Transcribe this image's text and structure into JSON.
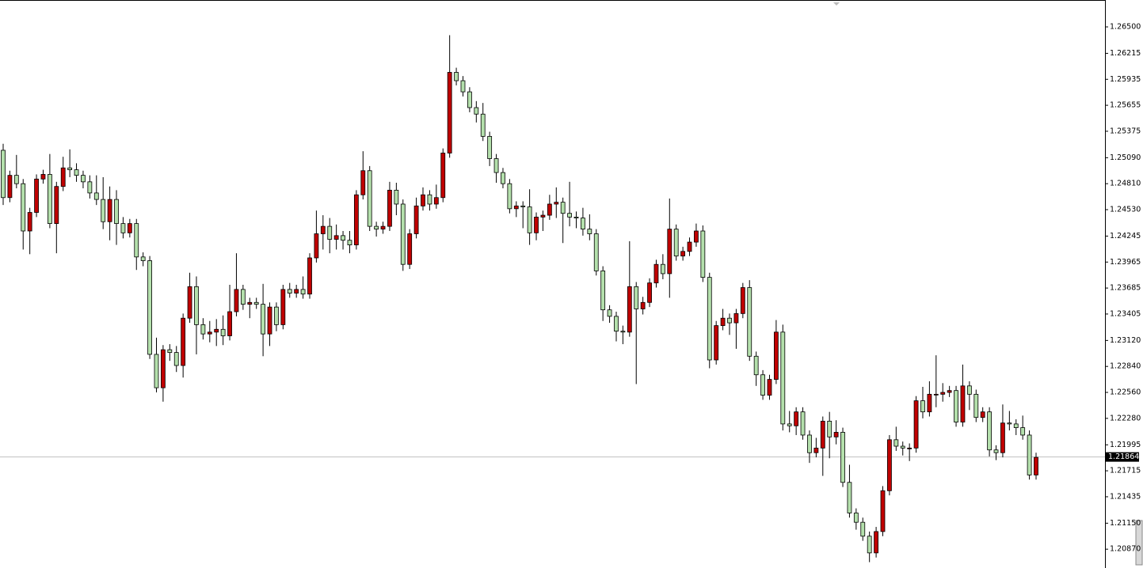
{
  "chart_data": {
    "type": "candlestick",
    "up_color": "#c00000",
    "down_color": "#b4e0ac",
    "outline_color": "#000000",
    "ylim": [
      1.20667,
      1.2679
    ],
    "yticks": [
      {
        "value": 1.265,
        "label": "1.26500"
      },
      1.26215,
      1.25935,
      1.25655,
      1.25375,
      {
        "value": 1.2509,
        "label": "1.25090"
      },
      {
        "value": 1.2481,
        "label": "1.24810"
      },
      {
        "value": 1.2453,
        "label": "1.24530"
      },
      1.24245,
      1.23965,
      1.23685,
      1.23405,
      {
        "value": 1.2312,
        "label": "1.23120"
      },
      {
        "value": 1.2284,
        "label": "1.22840"
      },
      {
        "value": 1.2256,
        "label": "1.22560"
      },
      {
        "value": 1.2228,
        "label": "1.22280"
      },
      1.21995,
      1.21715,
      1.21435,
      {
        "value": 1.2115,
        "label": "1.21150"
      },
      {
        "value": 1.2087,
        "label": "1.20870"
      }
    ],
    "current_price": 1.21864,
    "open": [
      1.2517,
      1.2466,
      1.249,
      1.2481,
      1.243,
      1.245,
      1.2486,
      1.2491,
      1.2438,
      1.2478,
      1.2498,
      1.2496,
      1.249,
      1.2483,
      1.2471,
      1.2464,
      1.244,
      1.2464,
      1.2438,
      1.2428,
      1.2438,
      1.2402,
      1.2398,
      1.2297,
      1.2261,
      1.2302,
      1.2299,
      1.2285,
      1.2336,
      1.237,
      1.2329,
      1.2319,
      1.2321,
      1.2324,
      1.2317,
      1.2343,
      1.2367,
      1.2351,
      1.2353,
      1.2351,
      1.2319,
      1.2348,
      1.2329,
      1.2367,
      1.2363,
      1.2367,
      1.2362,
      1.2401,
      1.2427,
      1.2435,
      1.2421,
      1.2425,
      1.242,
      1.2415,
      1.2469,
      1.2495,
      1.2435,
      1.2432,
      1.2435,
      1.2474,
      1.2459,
      1.2394,
      1.2427,
      1.2457,
      1.2469,
      1.2459,
      1.2466,
      1.2514,
      1.2601,
      1.2592,
      1.258,
      1.2563,
      1.2556,
      1.2532,
      1.2508,
      1.2493,
      1.2481,
      1.2454,
      1.2457,
      1.2456,
      1.2428,
      1.2445,
      1.2447,
      1.2459,
      1.2461,
      1.2449,
      1.2445,
      1.2444,
      1.2432,
      1.2427,
      1.2387,
      1.2345,
      1.2338,
      1.2322,
      1.2321,
      1.237,
      1.2346,
      1.2353,
      1.2374,
      1.2394,
      1.2384,
      1.2432,
      1.2403,
      1.2408,
      1.2418,
      1.243,
      1.238,
      1.2291,
      1.2328,
      1.2336,
      1.2331,
      1.2341,
      1.2369,
      1.2295,
      1.2275,
      1.2253,
      1.227,
      1.2321,
      1.2222,
      1.222,
      1.2235,
      1.221,
      1.2191,
      1.2196,
      1.2225,
      1.2208,
      1.2213,
      1.2159,
      1.2126,
      1.2116,
      1.2101,
      1.2083,
      1.2106,
      1.215,
      1.2205,
      1.2198,
      1.2196,
      1.2196,
      1.2247,
      1.2235,
      1.2254,
      1.2254,
      1.2256,
      1.2258,
      1.2224,
      1.2263,
      1.2254,
      1.2229,
      1.2235,
      1.2194,
      1.2191,
      1.2223,
      1.2222,
      1.2218,
      1.221,
      1.2167
    ],
    "high": [
      1.2524,
      1.2495,
      1.2512,
      1.2486,
      1.2455,
      1.2491,
      1.2496,
      1.2513,
      1.2483,
      1.251,
      1.2518,
      1.2503,
      1.2495,
      1.249,
      1.249,
      1.2488,
      1.2478,
      1.2474,
      1.2445,
      1.2443,
      1.2443,
      1.2407,
      1.2403,
      1.2315,
      1.2307,
      1.2308,
      1.2306,
      1.2341,
      1.2385,
      1.2381,
      1.2336,
      1.2333,
      1.2335,
      1.2339,
      1.2372,
      1.2406,
      1.2372,
      1.2358,
      1.2358,
      1.2373,
      1.2353,
      1.2353,
      1.2372,
      1.2374,
      1.2372,
      1.2381,
      1.2406,
      1.2452,
      1.2447,
      1.2444,
      1.2437,
      1.243,
      1.243,
      1.2474,
      1.2516,
      1.25,
      1.244,
      1.244,
      1.2483,
      1.2482,
      1.2464,
      1.2432,
      1.2466,
      1.2477,
      1.2474,
      1.248,
      1.2519,
      1.2641,
      1.2606,
      1.2597,
      1.2585,
      1.257,
      1.2568,
      1.2537,
      1.2513,
      1.2498,
      1.2486,
      1.2462,
      1.2462,
      1.2475,
      1.245,
      1.2452,
      1.2469,
      1.2477,
      1.2466,
      1.2483,
      1.2451,
      1.2455,
      1.2448,
      1.2432,
      1.2392,
      1.235,
      1.2343,
      1.2328,
      1.2419,
      1.2375,
      1.2359,
      1.2379,
      1.2399,
      1.2405,
      1.2465,
      1.2437,
      1.2413,
      1.2423,
      1.2438,
      1.2436,
      1.2385,
      1.2333,
      1.2346,
      1.2341,
      1.2346,
      1.2374,
      1.2377,
      1.23,
      1.228,
      1.2275,
      1.2334,
      1.2329,
      1.2236,
      1.224,
      1.224,
      1.2215,
      1.2207,
      1.223,
      1.2235,
      1.2226,
      1.2218,
      1.2178,
      1.2131,
      1.2121,
      1.2106,
      1.2111,
      1.2155,
      1.221,
      1.2219,
      1.2203,
      1.2201,
      1.2252,
      1.2262,
      1.2268,
      1.2296,
      1.2266,
      1.2263,
      1.2263,
      1.2286,
      1.2268,
      1.2259,
      1.224,
      1.224,
      1.2199,
      1.2243,
      1.2236,
      1.2227,
      1.2231,
      1.2215,
      1.2191
    ],
    "low": [
      1.2458,
      1.2461,
      1.2476,
      1.241,
      1.2405,
      1.2445,
      1.2481,
      1.2433,
      1.2406,
      1.2473,
      1.2488,
      1.2483,
      1.2476,
      1.2465,
      1.2458,
      1.2432,
      1.242,
      1.2415,
      1.2422,
      1.2423,
      1.2388,
      1.2392,
      1.2292,
      1.2256,
      1.2246,
      1.229,
      1.2278,
      1.2272,
      1.2331,
      1.2297,
      1.2313,
      1.231,
      1.2306,
      1.2307,
      1.2312,
      1.2338,
      1.2345,
      1.2336,
      1.2346,
      1.2295,
      1.2306,
      1.2322,
      1.2324,
      1.2358,
      1.2358,
      1.2357,
      1.2357,
      1.2396,
      1.241,
      1.2406,
      1.241,
      1.241,
      1.2406,
      1.241,
      1.2464,
      1.243,
      1.2424,
      1.2427,
      1.243,
      1.2447,
      1.2387,
      1.2389,
      1.2422,
      1.2452,
      1.2452,
      1.2454,
      1.2461,
      1.2509,
      1.2587,
      1.2575,
      1.2558,
      1.2547,
      1.2527,
      1.25,
      1.2482,
      1.2476,
      1.2449,
      1.2445,
      1.2433,
      1.2415,
      1.242,
      1.243,
      1.2442,
      1.2444,
      1.2417,
      1.2435,
      1.2433,
      1.2425,
      1.242,
      1.2382,
      1.2333,
      1.2331,
      1.2311,
      1.2308,
      1.2316,
      1.2265,
      1.234,
      1.2348,
      1.2369,
      1.2378,
      1.2358,
      1.2398,
      1.2398,
      1.2403,
      1.2413,
      1.2375,
      1.2282,
      1.2286,
      1.2323,
      1.2318,
      1.2303,
      1.2336,
      1.229,
      1.2263,
      1.2248,
      1.2248,
      1.2265,
      1.2215,
      1.2213,
      1.221,
      1.2205,
      1.218,
      1.2186,
      1.2166,
      1.2185,
      1.22,
      1.2154,
      1.2121,
      1.2108,
      1.2096,
      1.2073,
      1.2078,
      1.2101,
      1.2145,
      1.2193,
      1.2188,
      1.2182,
      1.2191,
      1.2228,
      1.223,
      1.224,
      1.2246,
      1.2251,
      1.2219,
      1.2219,
      1.2237,
      1.2224,
      1.2224,
      1.2187,
      1.2183,
      1.2186,
      1.2215,
      1.221,
      1.2205,
      1.2162,
      1.2162
    ],
    "close": [
      1.2466,
      1.249,
      1.2481,
      1.243,
      1.245,
      1.2486,
      1.2491,
      1.2438,
      1.2478,
      1.2498,
      1.2496,
      1.249,
      1.2483,
      1.2471,
      1.2464,
      1.244,
      1.2464,
      1.2438,
      1.2428,
      1.2438,
      1.2402,
      1.2398,
      1.2297,
      1.2261,
      1.2302,
      1.2299,
      1.2285,
      1.2336,
      1.237,
      1.2329,
      1.2319,
      1.2321,
      1.2324,
      1.2317,
      1.2343,
      1.2367,
      1.2351,
      1.2353,
      1.2351,
      1.2319,
      1.2348,
      1.2329,
      1.2367,
      1.2363,
      1.2367,
      1.2362,
      1.2401,
      1.2427,
      1.2435,
      1.2421,
      1.2425,
      1.242,
      1.2415,
      1.2469,
      1.2495,
      1.2435,
      1.2432,
      1.2435,
      1.2474,
      1.2459,
      1.2394,
      1.2427,
      1.2457,
      1.2469,
      1.2459,
      1.2466,
      1.2514,
      1.2601,
      1.2592,
      1.258,
      1.2563,
      1.2556,
      1.2532,
      1.2508,
      1.2493,
      1.2481,
      1.2454,
      1.2457,
      1.2456,
      1.2428,
      1.2445,
      1.2447,
      1.2459,
      1.2461,
      1.2449,
      1.2445,
      1.2444,
      1.2432,
      1.2427,
      1.2387,
      1.2345,
      1.2338,
      1.2322,
      1.2321,
      1.237,
      1.2346,
      1.2353,
      1.2374,
      1.2394,
      1.2384,
      1.2432,
      1.2403,
      1.2408,
      1.2418,
      1.243,
      1.238,
      1.2291,
      1.2328,
      1.2336,
      1.2331,
      1.2341,
      1.2369,
      1.2295,
      1.2275,
      1.2253,
      1.227,
      1.2321,
      1.2222,
      1.222,
      1.2235,
      1.221,
      1.2191,
      1.2196,
      1.2225,
      1.2208,
      1.2213,
      1.2159,
      1.2126,
      1.2116,
      1.2101,
      1.2083,
      1.2106,
      1.215,
      1.2205,
      1.2198,
      1.2196,
      1.2196,
      1.2247,
      1.2235,
      1.2254,
      1.2254,
      1.2256,
      1.2258,
      1.2224,
      1.2263,
      1.2254,
      1.2229,
      1.2235,
      1.2194,
      1.2191,
      1.2223,
      1.2222,
      1.2218,
      1.221,
      1.2167,
      1.2186
    ]
  }
}
